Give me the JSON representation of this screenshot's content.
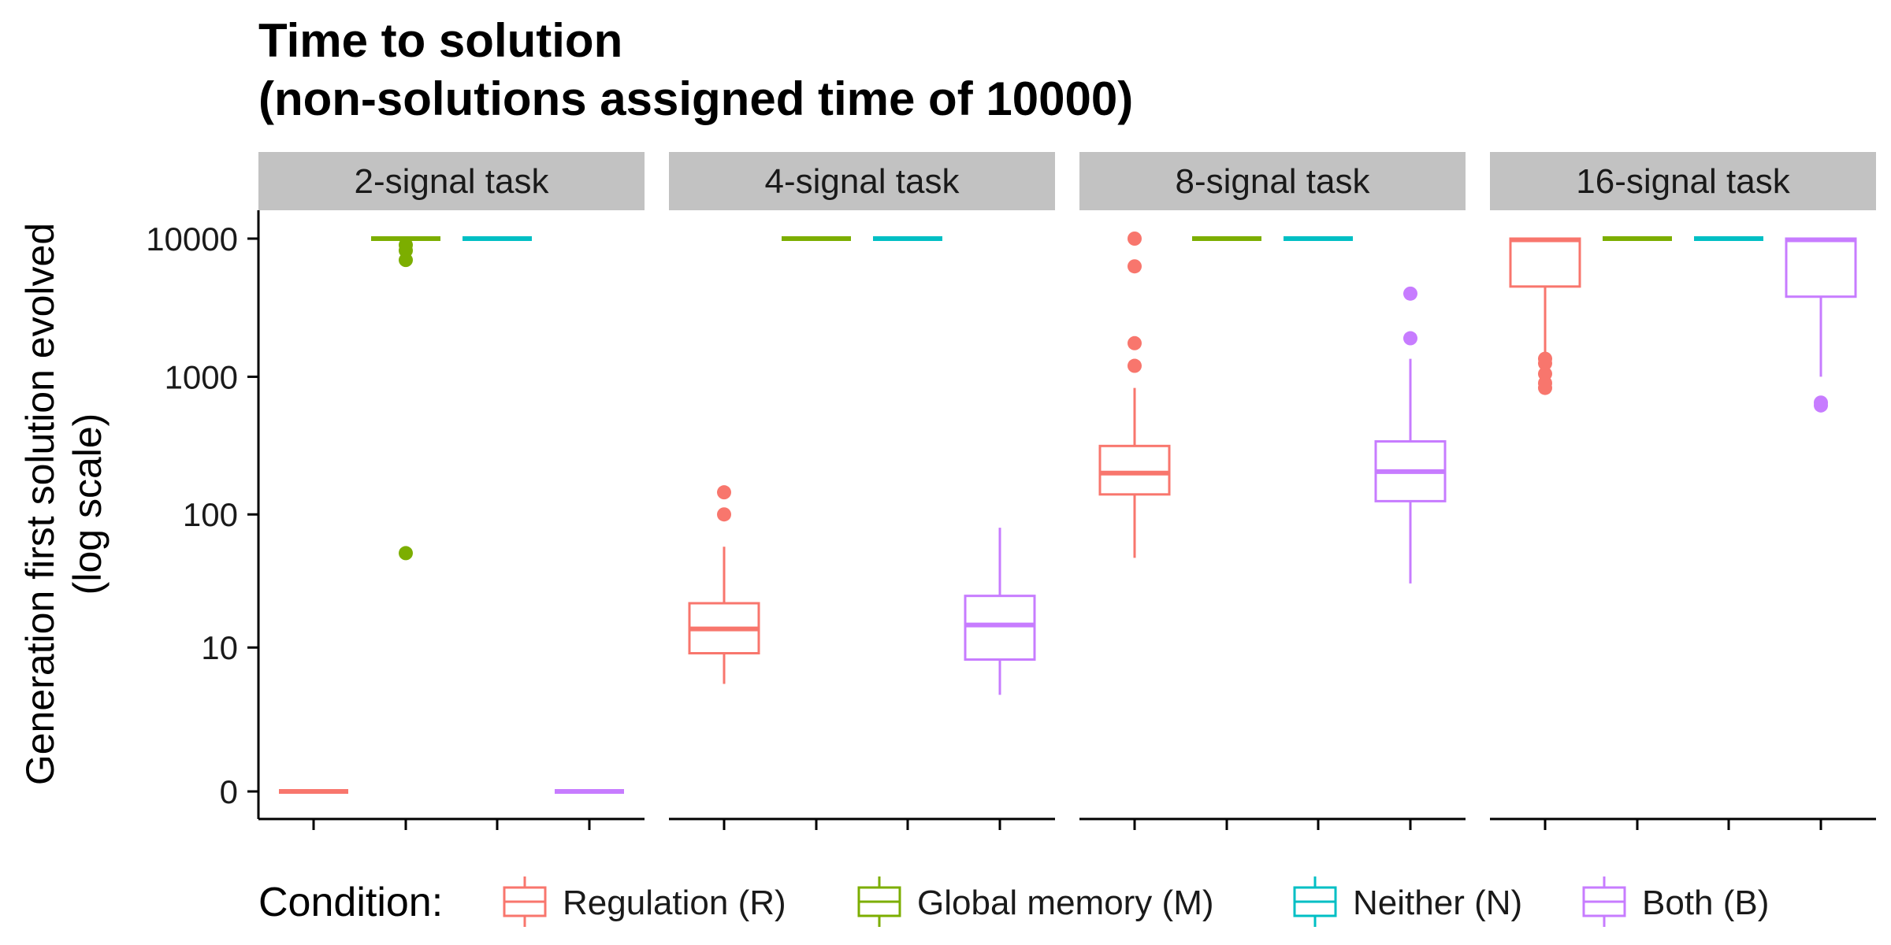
{
  "chart_data": {
    "type": "box",
    "title_line1": "Time to solution",
    "title_line2": "(non-solutions assigned time of 10000)",
    "ylabel_line1": "Generation first solution evolved",
    "ylabel_line2": "(log scale)",
    "y_scale": "log10(y+1)",
    "y_ticks": [
      0,
      10,
      100,
      1000,
      10000
    ],
    "y_tick_labels": [
      "0",
      "10",
      "100",
      "1000",
      "10000"
    ],
    "grid": false,
    "legend": {
      "title": "Condition:",
      "position": "bottom",
      "items": [
        {
          "key": "R",
          "label": "Regulation (R)",
          "color": "#F8766D"
        },
        {
          "key": "M",
          "label": "Global memory (M)",
          "color": "#7CAE00"
        },
        {
          "key": "N",
          "label": "Neither (N)",
          "color": "#00BFC4"
        },
        {
          "key": "B",
          "label": "Both (B)",
          "color": "#C77CFF"
        }
      ]
    },
    "panels": [
      {
        "label": "2-signal task",
        "boxes": [
          {
            "cond": "R",
            "min": 0,
            "q1": 0,
            "median": 0,
            "q3": 0,
            "max": 0,
            "outliers": []
          },
          {
            "cond": "M",
            "min": 10000,
            "q1": 10000,
            "median": 10000,
            "q3": 10000,
            "max": 10000,
            "outliers": [
              9000,
              8200,
              7000,
              52
            ]
          },
          {
            "cond": "N",
            "min": 10000,
            "q1": 10000,
            "median": 10000,
            "q3": 10000,
            "max": 10000,
            "outliers": []
          },
          {
            "cond": "B",
            "min": 0,
            "q1": 0,
            "median": 0,
            "q3": 0,
            "max": 0,
            "outliers": []
          }
        ]
      },
      {
        "label": "4-signal task",
        "boxes": [
          {
            "cond": "R",
            "min": 5,
            "q1": 9,
            "median": 14,
            "q3": 22,
            "max": 58,
            "outliers": [
              100,
              145
            ]
          },
          {
            "cond": "M",
            "min": 10000,
            "q1": 10000,
            "median": 10000,
            "q3": 10000,
            "max": 10000,
            "outliers": []
          },
          {
            "cond": "N",
            "min": 10000,
            "q1": 10000,
            "median": 10000,
            "q3": 10000,
            "max": 10000,
            "outliers": []
          },
          {
            "cond": "B",
            "min": 4,
            "q1": 8,
            "median": 15,
            "q3": 25,
            "max": 80,
            "outliers": []
          }
        ]
      },
      {
        "label": "8-signal task",
        "boxes": [
          {
            "cond": "R",
            "min": 48,
            "q1": 140,
            "median": 200,
            "q3": 315,
            "max": 830,
            "outliers": [
              1200,
              1750,
              6300,
              10000
            ]
          },
          {
            "cond": "M",
            "min": 10000,
            "q1": 10000,
            "median": 10000,
            "q3": 10000,
            "max": 10000,
            "outliers": []
          },
          {
            "cond": "N",
            "min": 10000,
            "q1": 10000,
            "median": 10000,
            "q3": 10000,
            "max": 10000,
            "outliers": []
          },
          {
            "cond": "B",
            "min": 31,
            "q1": 125,
            "median": 205,
            "q3": 340,
            "max": 1350,
            "outliers": [
              1900,
              4000
            ]
          }
        ]
      },
      {
        "label": "16-signal task",
        "boxes": [
          {
            "cond": "R",
            "min": 1500,
            "q1": 4500,
            "median": 9800,
            "q3": 10000,
            "max": 10000,
            "outliers": [
              830,
              900,
              1050,
              1250,
              1350
            ]
          },
          {
            "cond": "M",
            "min": 10000,
            "q1": 10000,
            "median": 10000,
            "q3": 10000,
            "max": 10000,
            "outliers": []
          },
          {
            "cond": "N",
            "min": 10000,
            "q1": 10000,
            "median": 10000,
            "q3": 10000,
            "max": 10000,
            "outliers": []
          },
          {
            "cond": "B",
            "min": 1000,
            "q1": 3800,
            "median": 9800,
            "q3": 10000,
            "max": 10000,
            "outliers": [
              620,
              650
            ]
          }
        ]
      }
    ]
  }
}
